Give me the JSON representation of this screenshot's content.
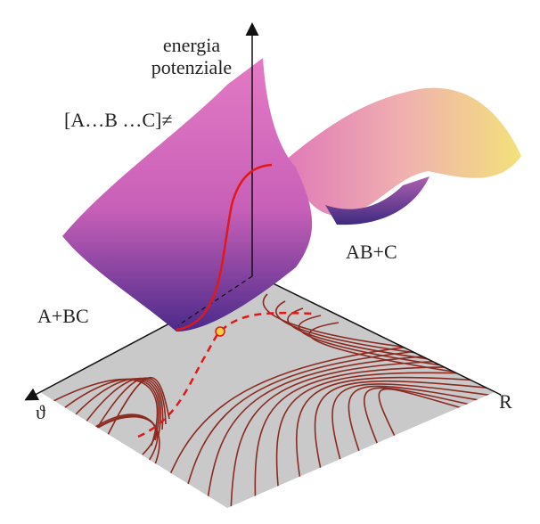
{
  "labels": {
    "axis_title": [
      "energia",
      "potenziale"
    ],
    "transition_state": "[A…B …C]≠",
    "products": "AB+C",
    "reactants": "A+BC",
    "theta_axis": "ϑ",
    "r_axis": "R"
  }
}
